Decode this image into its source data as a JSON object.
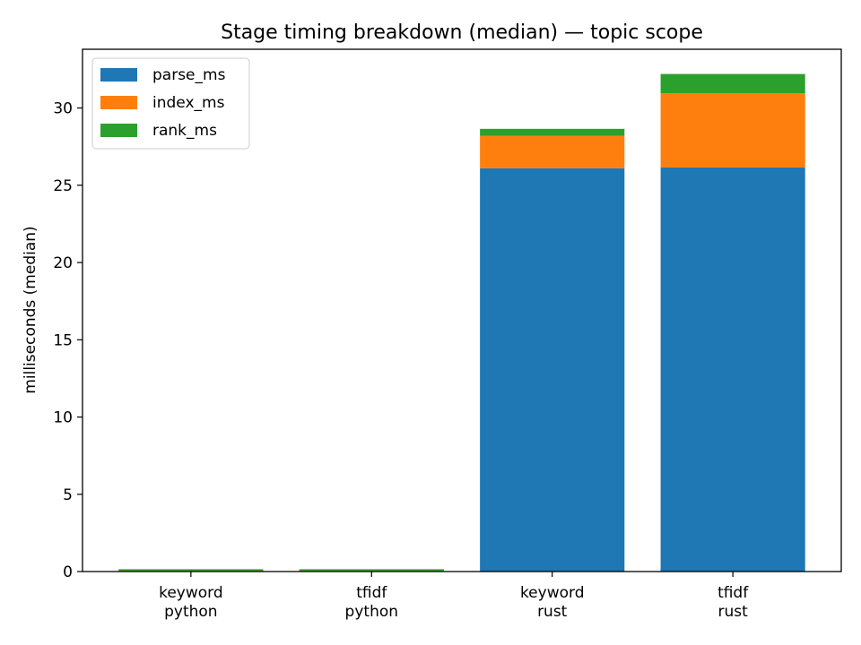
{
  "chart_data": {
    "type": "bar",
    "stacked": true,
    "title": "Stage timing breakdown (median) — topic scope",
    "xlabel": "",
    "ylabel": "milliseconds (median)",
    "categories": [
      [
        "keyword",
        "python"
      ],
      [
        "tfidf",
        "python"
      ],
      [
        "keyword",
        "rust"
      ],
      [
        "tfidf",
        "rust"
      ]
    ],
    "series": [
      {
        "name": "parse_ms",
        "color": "#1f77b4",
        "values": [
          0.02,
          0.02,
          26.1,
          26.15
        ]
      },
      {
        "name": "index_ms",
        "color": "#ff7f0e",
        "values": [
          0.03,
          0.03,
          2.1,
          4.8
        ]
      },
      {
        "name": "rank_ms",
        "color": "#2ca02c",
        "values": [
          0.1,
          0.1,
          0.45,
          1.25
        ]
      }
    ],
    "ylim": [
      0,
      33.8
    ],
    "yticks": [
      0,
      5,
      10,
      15,
      20,
      25,
      30
    ],
    "grid": false,
    "legend_position": "upper-left"
  }
}
